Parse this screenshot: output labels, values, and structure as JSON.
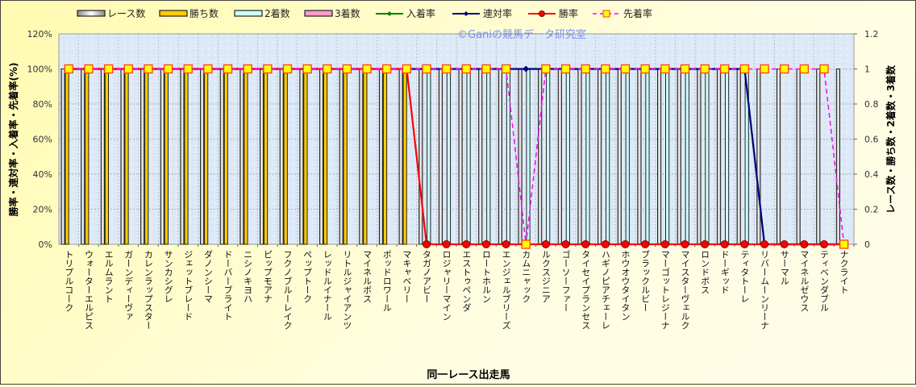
{
  "chart_data": {
    "type": "bar",
    "watermark": "©Ganiの競馬データ研究室",
    "xlabel": "同一レース出走馬",
    "ylabel_left": "勝率・連対率・入着率・先着率(%)",
    "ylabel_right": "レース数・勝ち数・2着数・3着数",
    "y_left_ticks": [
      "0%",
      "20%",
      "40%",
      "60%",
      "80%",
      "100%",
      "120%"
    ],
    "y_right_ticks": [
      "0",
      "0.2",
      "0.4",
      "0.6",
      "0.8",
      "1",
      "1.2"
    ],
    "ylim_left": [
      0,
      120
    ],
    "ylim_right": [
      0,
      1.2
    ],
    "grid": true,
    "legend_position": "top",
    "legend": [
      {
        "name": "レース数",
        "kind": "bar",
        "color": "#ffffff"
      },
      {
        "name": "勝ち数",
        "kind": "bar",
        "color": "#ffcc00"
      },
      {
        "name": "2着数",
        "kind": "bar",
        "color": "#ccffff"
      },
      {
        "name": "3着数",
        "kind": "bar",
        "color": "#ff99cc"
      },
      {
        "name": "入着率",
        "kind": "line",
        "color": "#008000"
      },
      {
        "name": "連対率",
        "kind": "line",
        "color": "#000080"
      },
      {
        "name": "勝率",
        "kind": "line",
        "color": "#ff0000"
      },
      {
        "name": "先着率",
        "kind": "dashline",
        "color": "#ff00ff"
      }
    ],
    "categories": [
      "トリプルコーク",
      "ウォーターエルピス",
      "エルムラント",
      "ガーンディーヴァ",
      "カレンラップスター",
      "サンカシグレ",
      "ジェットブレード",
      "ダノンシーマ",
      "ドーバーブライト",
      "ニシノキヨハ",
      "ピップモアナ",
      "フクノブルーレイク",
      "ペップトーク",
      "レッドルイナール",
      "リトルジャイアンツ",
      "マイネルポス",
      "ポッドロワール",
      "マキャベリー",
      "タガノアビー",
      "ロジャリーマイン",
      "エストゥペンダ",
      "ロートホルン",
      "エンジェルブリーズ",
      "カムニャック",
      "ルクスジニア",
      "ゴーソーファー",
      "タイセイプランセス",
      "ハギノピアチェーレ",
      "ホウオウタイタン",
      "ブラックルビー",
      "マーゴットレジーナ",
      "マイスターヴェルク",
      "ロンドボス",
      "ドーギッド",
      "ティタトーレ",
      "リバームーンリーナ",
      "サーマル",
      "マイネルゼウス",
      "ティベンダブル",
      "ナクライト"
    ],
    "series": [
      {
        "name": "レース数",
        "axis": "right",
        "values": [
          1,
          1,
          1,
          1,
          1,
          1,
          1,
          1,
          1,
          1,
          1,
          1,
          1,
          1,
          1,
          1,
          1,
          1,
          1,
          1,
          1,
          1,
          1,
          1,
          1,
          1,
          1,
          1,
          1,
          1,
          1,
          1,
          1,
          1,
          1,
          1,
          1,
          1,
          1,
          1
        ]
      },
      {
        "name": "勝ち数",
        "axis": "right",
        "values": [
          1,
          1,
          1,
          1,
          1,
          1,
          1,
          1,
          1,
          1,
          1,
          1,
          1,
          1,
          1,
          1,
          1,
          1,
          0,
          0,
          0,
          0,
          0,
          0,
          0,
          0,
          0,
          0,
          0,
          0,
          0,
          0,
          0,
          0,
          0,
          0,
          0,
          0,
          0,
          0
        ]
      },
      {
        "name": "2着数",
        "axis": "right",
        "values": [
          0,
          0,
          0,
          0,
          0,
          0,
          0,
          0,
          0,
          0,
          0,
          0,
          0,
          0,
          0,
          0,
          0,
          0,
          1,
          1,
          1,
          1,
          1,
          1,
          1,
          1,
          1,
          1,
          1,
          1,
          1,
          1,
          1,
          1,
          1,
          0,
          0,
          0,
          0,
          0
        ]
      },
      {
        "name": "3着数",
        "axis": "right",
        "values": [
          0,
          0,
          0,
          0,
          0,
          0,
          0,
          0,
          0,
          0,
          0,
          0,
          0,
          0,
          0,
          0,
          0,
          0,
          0,
          0,
          0,
          0,
          0,
          0,
          0,
          0,
          0,
          0,
          0,
          0,
          0,
          0,
          0,
          0,
          0,
          0,
          0,
          0,
          0,
          0
        ]
      },
      {
        "name": "入着率",
        "axis": "left",
        "values": [
          100,
          100,
          100,
          100,
          100,
          100,
          100,
          100,
          100,
          100,
          100,
          100,
          100,
          100,
          100,
          100,
          100,
          100,
          100,
          100,
          100,
          100,
          100,
          100,
          100,
          100,
          100,
          100,
          100,
          100,
          100,
          100,
          100,
          100,
          100,
          0,
          0,
          0,
          0,
          0
        ]
      },
      {
        "name": "連対率",
        "axis": "left",
        "values": [
          100,
          100,
          100,
          100,
          100,
          100,
          100,
          100,
          100,
          100,
          100,
          100,
          100,
          100,
          100,
          100,
          100,
          100,
          100,
          100,
          100,
          100,
          100,
          100,
          100,
          100,
          100,
          100,
          100,
          100,
          100,
          100,
          100,
          100,
          100,
          0,
          0,
          0,
          0,
          0
        ]
      },
      {
        "name": "勝率",
        "axis": "left",
        "values": [
          100,
          100,
          100,
          100,
          100,
          100,
          100,
          100,
          100,
          100,
          100,
          100,
          100,
          100,
          100,
          100,
          100,
          100,
          0,
          0,
          0,
          0,
          0,
          0,
          0,
          0,
          0,
          0,
          0,
          0,
          0,
          0,
          0,
          0,
          0,
          0,
          0,
          0,
          0,
          0
        ]
      },
      {
        "name": "先着率",
        "axis": "left",
        "values": [
          100,
          100,
          100,
          100,
          100,
          100,
          100,
          100,
          100,
          100,
          100,
          100,
          100,
          100,
          100,
          100,
          100,
          100,
          100,
          100,
          100,
          100,
          100,
          0,
          100,
          100,
          100,
          100,
          100,
          100,
          100,
          100,
          100,
          100,
          100,
          100,
          100,
          100,
          100,
          0
        ]
      }
    ]
  }
}
